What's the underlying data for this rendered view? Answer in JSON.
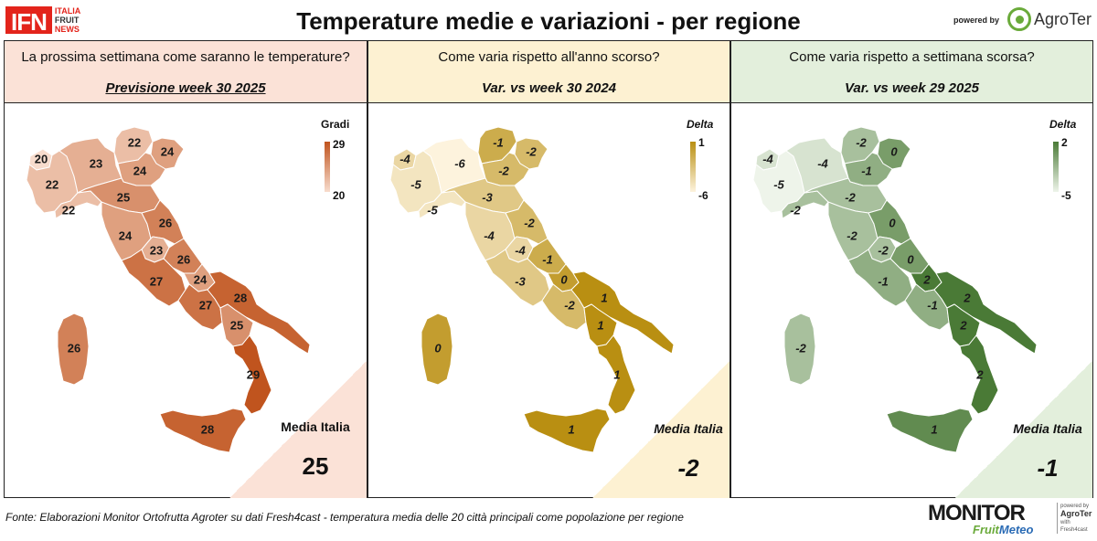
{
  "header": {
    "logo": {
      "main": "IFN",
      "lines": [
        "ITALIA",
        "FRUIT",
        "NEWS"
      ]
    },
    "title": "Temperature medie e variazioni - per regione",
    "powered_by": "powered by",
    "brand": "AgroTer"
  },
  "colors": {
    "temp_low": "#f7dccd",
    "temp_high": "#c0541e",
    "yoy_low": "#fdf3dd",
    "yoy_high": "#b98f12",
    "wow_low": "#eef4ea",
    "wow_high": "#4a7a36",
    "panel1_bg": "#fbe2d7",
    "panel2_bg": "#fdf1d2",
    "panel3_bg": "#e3efdc"
  },
  "chart_data": [
    {
      "type": "heatmap",
      "question": "La prossima settimana come saranno le temperature?",
      "subtitle": "Previsione week 30 2025",
      "legend": {
        "title": "Gradi",
        "max": "29",
        "min": "20",
        "range": [
          20,
          29
        ]
      },
      "media_label": "Media Italia",
      "media_value": "25",
      "regions": [
        {
          "name": "Valle d'Aosta",
          "value": 20,
          "label": "20"
        },
        {
          "name": "Piemonte",
          "value": 22,
          "label": "22"
        },
        {
          "name": "Liguria",
          "value": 22,
          "label": "22"
        },
        {
          "name": "Lombardia",
          "value": 23,
          "label": "23"
        },
        {
          "name": "Trentino-Alto Adige",
          "value": 22,
          "label": "22"
        },
        {
          "name": "Friuli-Venezia Giulia",
          "value": 24,
          "label": "24"
        },
        {
          "name": "Veneto",
          "value": 24,
          "label": "24"
        },
        {
          "name": "Emilia-Romagna",
          "value": 25,
          "label": "25"
        },
        {
          "name": "Toscana",
          "value": 24,
          "label": "24"
        },
        {
          "name": "Marche",
          "value": 26,
          "label": "26"
        },
        {
          "name": "Umbria",
          "value": 23,
          "label": "23"
        },
        {
          "name": "Abruzzo",
          "value": 26,
          "label": "26"
        },
        {
          "name": "Lazio",
          "value": 27,
          "label": "27"
        },
        {
          "name": "Molise",
          "value": 24,
          "label": "24"
        },
        {
          "name": "Campania",
          "value": 27,
          "label": "27"
        },
        {
          "name": "Puglia",
          "value": 28,
          "label": "28"
        },
        {
          "name": "Basilicata",
          "value": 25,
          "label": "25"
        },
        {
          "name": "Calabria",
          "value": 29,
          "label": "29"
        },
        {
          "name": "Sicilia",
          "value": 28,
          "label": "28"
        },
        {
          "name": "Sardegna",
          "value": 26,
          "label": "26"
        }
      ]
    },
    {
      "type": "heatmap",
      "question": "Come varia rispetto all'anno scorso?",
      "subtitle": "Var. vs week 30 2024",
      "legend": {
        "title": "Delta",
        "max": "1",
        "min": "-6",
        "range": [
          -6,
          1
        ]
      },
      "media_label": "Media Italia",
      "media_value": "-2",
      "regions": [
        {
          "name": "Valle d'Aosta",
          "value": -4,
          "label": "-4"
        },
        {
          "name": "Piemonte",
          "value": -5,
          "label": "-5"
        },
        {
          "name": "Liguria",
          "value": -5,
          "label": "-5"
        },
        {
          "name": "Lombardia",
          "value": -6,
          "label": "-6"
        },
        {
          "name": "Trentino-Alto Adige",
          "value": -1,
          "label": "-1"
        },
        {
          "name": "Friuli-Venezia Giulia",
          "value": -2,
          "label": "-2"
        },
        {
          "name": "Veneto",
          "value": -2,
          "label": "-2"
        },
        {
          "name": "Emilia-Romagna",
          "value": -3,
          "label": "-3"
        },
        {
          "name": "Toscana",
          "value": -4,
          "label": "-4"
        },
        {
          "name": "Marche",
          "value": -2,
          "label": "-2"
        },
        {
          "name": "Umbria",
          "value": -4,
          "label": "-4"
        },
        {
          "name": "Abruzzo",
          "value": -1,
          "label": "-1"
        },
        {
          "name": "Lazio",
          "value": -3,
          "label": "-3"
        },
        {
          "name": "Molise",
          "value": 0,
          "label": "0"
        },
        {
          "name": "Campania",
          "value": -2,
          "label": "-2"
        },
        {
          "name": "Puglia",
          "value": 1,
          "label": "1"
        },
        {
          "name": "Basilicata",
          "value": 1,
          "label": "1"
        },
        {
          "name": "Calabria",
          "value": 1,
          "label": "1"
        },
        {
          "name": "Sicilia",
          "value": 1,
          "label": "1"
        },
        {
          "name": "Sardegna",
          "value": 0,
          "label": "0"
        }
      ]
    },
    {
      "type": "heatmap",
      "question": "Come varia rispetto a settimana scorsa?",
      "subtitle": "Var. vs week 29 2025",
      "legend": {
        "title": "Delta",
        "max": "2",
        "min": "-5",
        "range": [
          -5,
          2
        ]
      },
      "media_label": "Media Italia",
      "media_value": "-1",
      "regions": [
        {
          "name": "Valle d'Aosta",
          "value": -4,
          "label": "-4"
        },
        {
          "name": "Piemonte",
          "value": -5,
          "label": "-5"
        },
        {
          "name": "Liguria",
          "value": -2,
          "label": "-2"
        },
        {
          "name": "Lombardia",
          "value": -4,
          "label": "-4"
        },
        {
          "name": "Trentino-Alto Adige",
          "value": -2,
          "label": "-2"
        },
        {
          "name": "Friuli-Venezia Giulia",
          "value": 0,
          "label": "0"
        },
        {
          "name": "Veneto",
          "value": -1,
          "label": "-1"
        },
        {
          "name": "Emilia-Romagna",
          "value": -2,
          "label": "-2"
        },
        {
          "name": "Toscana",
          "value": -2,
          "label": "-2"
        },
        {
          "name": "Marche",
          "value": 0,
          "label": "0"
        },
        {
          "name": "Umbria",
          "value": -2,
          "label": "-2"
        },
        {
          "name": "Abruzzo",
          "value": 0,
          "label": "0"
        },
        {
          "name": "Lazio",
          "value": -1,
          "label": "-1"
        },
        {
          "name": "Molise",
          "value": 2,
          "label": "2"
        },
        {
          "name": "Campania",
          "value": -1,
          "label": "-1"
        },
        {
          "name": "Puglia",
          "value": 2,
          "label": "2"
        },
        {
          "name": "Basilicata",
          "value": 2,
          "label": "2"
        },
        {
          "name": "Calabria",
          "value": 2,
          "label": "2"
        },
        {
          "name": "Sicilia",
          "value": 1,
          "label": "1"
        },
        {
          "name": "Sardegna",
          "value": -2,
          "label": "-2"
        }
      ]
    }
  ],
  "footer": {
    "source": "Fonte: Elaborazioni Monitor Ortofrutta Agroter su dati Fresh4cast - temperatura media delle 20 città principali come popolazione per regione",
    "monitor_logo": {
      "word": "MONITOR",
      "fruit": "Fruit",
      "meteo": "Meteo",
      "side_small": "powered by",
      "side_brand": "AgroTer",
      "side_with": "with",
      "side_partner": "Fresh4cast"
    }
  }
}
